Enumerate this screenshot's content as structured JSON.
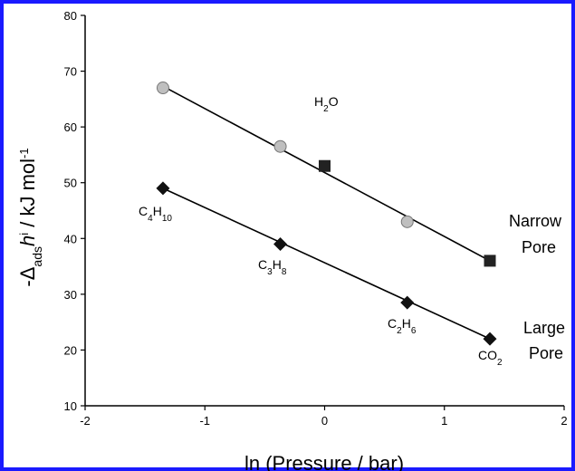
{
  "chart_data": {
    "type": "scatter",
    "xlabel": "ln (Pressure / bar)",
    "ylabel": {
      "prefix": "-Δ",
      "sub": "ads",
      "var": "h",
      "sup": "i",
      "suffix": " / kJ mol",
      "unit_sup": "-1"
    },
    "xlim": [
      -2,
      2
    ],
    "ylim": [
      10,
      80
    ],
    "xticks": [
      -2,
      -1,
      0,
      1,
      2
    ],
    "yticks": [
      10,
      20,
      30,
      40,
      50,
      60,
      70,
      80
    ],
    "grid": false,
    "frame_color": "#1a1aff",
    "series": [
      {
        "marker": "circle",
        "color": "#bfbfbf",
        "points": [
          {
            "x": -1.35,
            "y": 67
          },
          {
            "x": -0.37,
            "y": 56.5
          },
          {
            "x": 0.69,
            "y": 43
          }
        ]
      },
      {
        "marker": "square",
        "color": "#222222",
        "points": [
          {
            "x": 0.0,
            "y": 53
          },
          {
            "x": 1.38,
            "y": 36
          }
        ]
      },
      {
        "marker": "diamond",
        "color": "#111111",
        "points": [
          {
            "x": -1.35,
            "y": 49
          },
          {
            "x": -0.37,
            "y": 39
          },
          {
            "x": 0.69,
            "y": 28.5
          },
          {
            "x": 1.38,
            "y": 22
          }
        ]
      }
    ],
    "trendlines": [
      {
        "x0": -1.35,
        "y0": 67.3,
        "x1": 1.38,
        "y1": 36
      },
      {
        "x0": -1.35,
        "y0": 49,
        "x1": 1.38,
        "y1": 22
      }
    ],
    "annotations": [
      {
        "base": "H",
        "sub": "2",
        "rest": "O"
      },
      {
        "base": "C",
        "sub": "4",
        "rest": "H",
        "sub2": "10"
      },
      {
        "base": "C",
        "sub": "3",
        "rest": "H",
        "sub2": "8"
      },
      {
        "base": "C",
        "sub": "2",
        "rest": "H",
        "sub2": "6"
      },
      {
        "base": "CO",
        "sub": "2",
        "rest": ""
      }
    ],
    "side_labels": {
      "narrow": [
        "Narrow",
        "Pore"
      ],
      "large": [
        "Large",
        "Pore"
      ]
    }
  }
}
